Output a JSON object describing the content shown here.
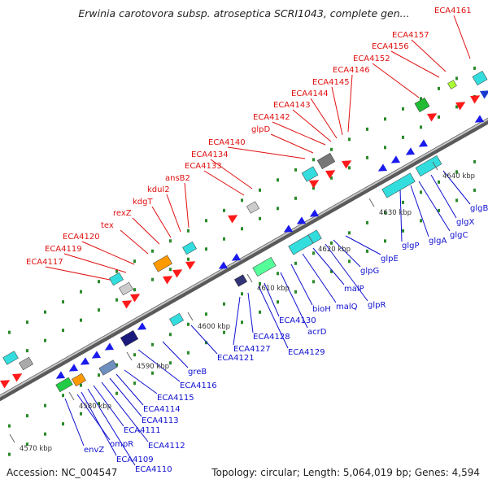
{
  "title": "Erwinia carotovora subsp. atroseptica SCRI1043, complete gen...",
  "footer": {
    "accession_label": "Accession:",
    "accession": "NC_004547",
    "topology_label": "Topology:",
    "topology": "circular",
    "length_label": "Length:",
    "length": "5,064,019 bp",
    "genes_label": "Genes:",
    "genes": "4,594"
  },
  "colors": {
    "backbone": "#8a8a8a",
    "upper_labels": "#e01010",
    "lower_labels": "#1010d0",
    "tick_dots": "#2a8a2a"
  },
  "kbp_ticks": [
    "4570 kbp",
    "4580 kbp",
    "4590 kbp",
    "4600 kbp",
    "4610 kbp",
    "4620 kbp",
    "4630 kbp",
    "4640 kbp"
  ],
  "upper_genes": [
    "ECA4117",
    "ECA4119",
    "ECA4120",
    "tex",
    "rexZ",
    "kdgT",
    "kdul2",
    "ansB2",
    "ECA4133",
    "ECA4134",
    "ECA4140",
    "glpD",
    "ECA4142",
    "ECA4143",
    "ECA4144",
    "ECA4145",
    "ECA4146",
    "ECA4152",
    "ECA4156",
    "ECA4157",
    "ECA4161"
  ],
  "lower_genes": [
    "envZ",
    "ompR",
    "ECA4109",
    "ECA4110",
    "ECA4111",
    "ECA4112",
    "ECA4113",
    "ECA4114",
    "ECA4115",
    "ECA4116",
    "greB",
    "ECA4121",
    "ECA4127",
    "ECA4128",
    "ECA4129",
    "ECA4130",
    "acrD",
    "bioH",
    "malQ",
    "malP",
    "glpR",
    "glpG",
    "glpE",
    "glgP",
    "glgA",
    "glgC",
    "glgX",
    "glgB"
  ]
}
